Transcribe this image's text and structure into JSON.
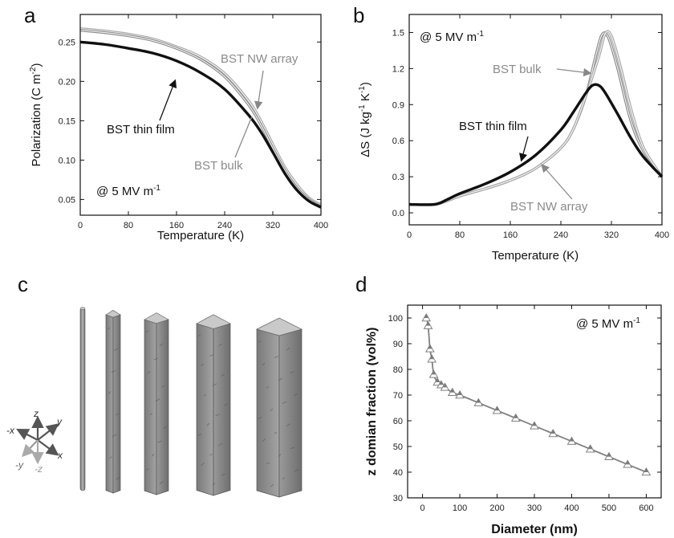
{
  "panel_labels": {
    "a": "a",
    "b": "b",
    "c": "c",
    "d": "d"
  },
  "colors": {
    "thin_film": "#111111",
    "bulk": "#8c8c8c",
    "nw_array": "#a8a8a8",
    "panel_d_series": "#808080"
  },
  "annotations": {
    "a_field": "@ 5 MV m",
    "a_field_sup": "-1",
    "b_field": "@ 5 MV m",
    "b_field_sup": "-1",
    "d_field": "@ 5 MV m",
    "d_field_sup": "-1",
    "a_nw": "BST NW array",
    "a_thin": "BST thin film",
    "a_bulk": "BST bulk",
    "b_bulk": "BST bulk",
    "b_thin": "BST thin film",
    "b_nw": "BST NW array"
  },
  "axis_labels": {
    "c_x": "x",
    "c_mx": "-x",
    "c_y": "y",
    "c_my": "-y",
    "c_z": "z",
    "c_mz": "-z"
  },
  "chart_data": [
    {
      "id": "a",
      "type": "line",
      "xlabel": "Temperature (K)",
      "ylabel_main": "Polarization (C m",
      "ylabel_sup": "-2",
      "ylabel_close": ")",
      "xlim": [
        0,
        400
      ],
      "ylim": [
        0.03,
        0.285
      ],
      "xticks": [
        "0",
        "80",
        "160",
        "240",
        "320",
        "400"
      ],
      "yticks": [
        "0.05",
        "0.10",
        "0.15",
        "0.20",
        "0.25"
      ],
      "series": [
        {
          "name": "BST NW array",
          "color": "#a8a8a8",
          "x": [
            0,
            40,
            80,
            120,
            160,
            200,
            240,
            280,
            300,
            320,
            340,
            360,
            380,
            400
          ],
          "y": [
            0.267,
            0.264,
            0.26,
            0.254,
            0.244,
            0.231,
            0.21,
            0.175,
            0.15,
            0.12,
            0.091,
            0.069,
            0.052,
            0.043
          ]
        },
        {
          "name": "BST bulk",
          "color": "#8c8c8c",
          "x": [
            0,
            40,
            80,
            120,
            160,
            200,
            240,
            280,
            300,
            320,
            340,
            360,
            380,
            400
          ],
          "y": [
            0.265,
            0.262,
            0.258,
            0.252,
            0.242,
            0.228,
            0.206,
            0.17,
            0.145,
            0.115,
            0.087,
            0.065,
            0.05,
            0.041
          ]
        },
        {
          "name": "BST thin film",
          "color": "#111111",
          "x": [
            0,
            40,
            80,
            120,
            160,
            200,
            240,
            280,
            300,
            320,
            340,
            360,
            380,
            400
          ],
          "y": [
            0.25,
            0.247,
            0.242,
            0.236,
            0.226,
            0.211,
            0.19,
            0.157,
            0.136,
            0.11,
            0.083,
            0.062,
            0.048,
            0.04
          ]
        }
      ]
    },
    {
      "id": "b",
      "type": "line",
      "xlabel": "Temperature (K)",
      "ylabel_main": "ΔS  (J kg",
      "ylabel_sup1": "-1",
      "ylabel_mid": " K",
      "ylabel_sup2": "-1",
      "ylabel_close": ")",
      "xlim": [
        0,
        400
      ],
      "ylim": [
        -0.1,
        1.65
      ],
      "xticks": [
        "0",
        "80",
        "160",
        "240",
        "320",
        "400"
      ],
      "yticks": [
        "0.0",
        "0.3",
        "0.6",
        "0.9",
        "1.2",
        "1.5"
      ],
      "series": [
        {
          "name": "BST bulk",
          "color": "#8c8c8c",
          "x": [
            0,
            40,
            60,
            80,
            120,
            160,
            200,
            240,
            260,
            280,
            295,
            305,
            315,
            330,
            350,
            370,
            400
          ],
          "y": [
            0.07,
            0.07,
            0.1,
            0.14,
            0.2,
            0.27,
            0.37,
            0.54,
            0.7,
            0.98,
            1.3,
            1.48,
            1.46,
            1.2,
            0.78,
            0.52,
            0.3
          ]
        },
        {
          "name": "BST NW array",
          "color": "#a8a8a8",
          "x": [
            0,
            40,
            60,
            80,
            120,
            160,
            200,
            240,
            260,
            280,
            300,
            310,
            320,
            335,
            350,
            370,
            400
          ],
          "y": [
            0.07,
            0.07,
            0.1,
            0.14,
            0.2,
            0.27,
            0.37,
            0.54,
            0.7,
            0.98,
            1.3,
            1.49,
            1.47,
            1.2,
            0.88,
            0.55,
            0.3
          ]
        },
        {
          "name": "BST thin film",
          "color": "#111111",
          "x": [
            0,
            40,
            60,
            80,
            120,
            160,
            200,
            240,
            260,
            280,
            290,
            300,
            310,
            330,
            350,
            370,
            400
          ],
          "y": [
            0.07,
            0.07,
            0.11,
            0.16,
            0.24,
            0.34,
            0.48,
            0.69,
            0.84,
            1.0,
            1.06,
            1.06,
            1.0,
            0.82,
            0.63,
            0.47,
            0.3
          ]
        }
      ]
    },
    {
      "id": "d",
      "type": "line",
      "xlabel": "Diameter (nm)",
      "ylabel": "z domian fraction (vol%)",
      "xlim": [
        -40,
        640
      ],
      "ylim": [
        30,
        105
      ],
      "xticks": [
        "0",
        "100",
        "200",
        "300",
        "400",
        "500",
        "600"
      ],
      "yticks": [
        "30",
        "40",
        "50",
        "60",
        "70",
        "80",
        "90",
        "100"
      ],
      "series": [
        {
          "name": "",
          "color": "#808080",
          "x": [
            10,
            15,
            20,
            25,
            30,
            40,
            50,
            60,
            80,
            100,
            150,
            200,
            250,
            300,
            350,
            400,
            450,
            500,
            550,
            600
          ],
          "y": [
            100,
            97,
            88,
            84,
            78,
            75,
            74,
            73,
            71,
            70,
            67,
            64,
            61,
            58,
            55,
            52,
            49,
            46,
            43,
            40
          ]
        }
      ]
    }
  ]
}
